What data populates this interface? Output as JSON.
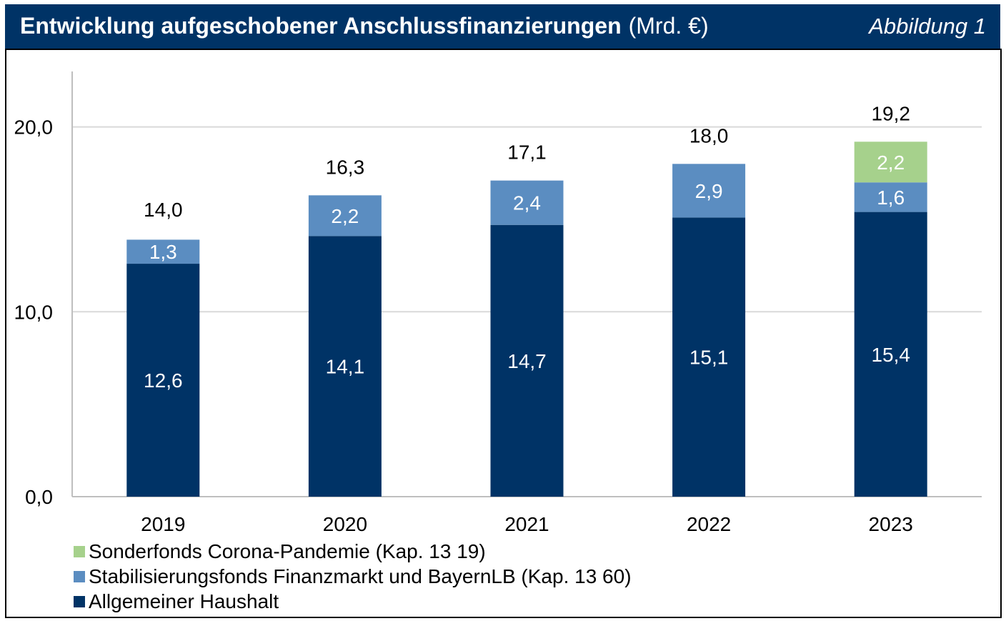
{
  "header": {
    "title_bold": "Entwicklung aufgeschobener Anschlussfinanzierungen",
    "title_unit": "(Mrd. €)",
    "figure_label": "Abbildung 1"
  },
  "chart_data": {
    "type": "bar",
    "stacked": true,
    "title": "Entwicklung aufgeschobener Anschlussfinanzierungen (Mrd. €)",
    "categories": [
      "2019",
      "2020",
      "2021",
      "2022",
      "2023"
    ],
    "series": [
      {
        "name": "Allgemeiner Haushalt",
        "values": [
          12.6,
          14.1,
          14.7,
          15.1,
          15.4
        ],
        "labels": [
          "12,6",
          "14,1",
          "14,7",
          "15,1",
          "15,4"
        ],
        "color": "#003366",
        "label_color": "#ffffff"
      },
      {
        "name": "Stabilisierungsfonds Finanzmarkt und BayernLB (Kap. 13 60)",
        "values": [
          1.3,
          2.2,
          2.4,
          2.9,
          1.6
        ],
        "labels": [
          "1,3",
          "2,2",
          "2,4",
          "2,9",
          "1,6"
        ],
        "color": "#5B8DC1",
        "label_color": "#ffffff"
      },
      {
        "name": "Sonderfonds Corona-Pandemie (Kap. 13 19)",
        "values": [
          0,
          0,
          0,
          0,
          2.2
        ],
        "labels": [
          "",
          "",
          "",
          "",
          "2,2"
        ],
        "color": "#A6D18C",
        "label_color": "#ffffff"
      }
    ],
    "totals": [
      14.0,
      16.3,
      17.1,
      18.0,
      19.2
    ],
    "total_labels": [
      "14,0",
      "16,3",
      "17,1",
      "18,0",
      "19,2"
    ],
    "ylim": [
      0,
      23
    ],
    "yticks": [
      0,
      10,
      20
    ],
    "ytick_labels": [
      "0,0",
      "10,0",
      "20,0"
    ],
    "grid": true,
    "legend": {
      "position": "bottom-left",
      "order": [
        "Sonderfonds Corona-Pandemie (Kap. 13 19)",
        "Stabilisierungsfonds Finanzmarkt und BayernLB (Kap. 13 60)",
        "Allgemeiner Haushalt"
      ]
    },
    "colors": {
      "grid": "#D9D9D9",
      "axis": "#BFBFBF",
      "text": "#000000"
    }
  }
}
